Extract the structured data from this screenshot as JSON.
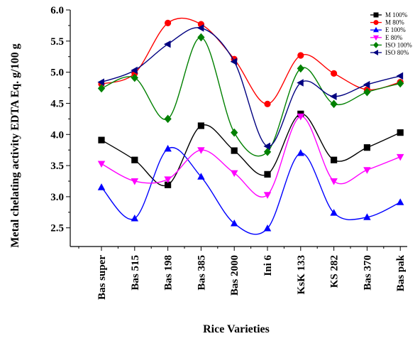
{
  "chart_data": {
    "type": "line",
    "title": "",
    "xlabel": "Rice Varieties",
    "ylabel": "Metal chelating activity EDTA Eq. g/100 g",
    "ylim": [
      2.2,
      6.0
    ],
    "yticks": [
      "2.5",
      "3.0",
      "3.5",
      "4.0",
      "4.5",
      "5.0",
      "5.5",
      "6.0"
    ],
    "categories": [
      "Bas super",
      "Bas 515",
      "Bas 198",
      "Bas 385",
      "Bas 2000",
      "Ini 6",
      "KsK 133",
      "KS 282",
      "Bas 370",
      "Bas pak"
    ],
    "legend_position": "top-right",
    "grid": false,
    "series": [
      {
        "name": "M 100%",
        "color": "#000000",
        "marker": "square",
        "values": [
          3.91,
          3.59,
          3.19,
          4.14,
          3.74,
          3.36,
          4.33,
          3.59,
          3.79,
          4.03
        ]
      },
      {
        "name": "M 80%",
        "color": "#ff0000",
        "marker": "circle",
        "values": [
          4.81,
          4.98,
          5.79,
          5.77,
          5.21,
          4.49,
          5.27,
          4.98,
          4.72,
          4.84
        ]
      },
      {
        "name": "E 100%",
        "color": "#0000ff",
        "marker": "triangle-up",
        "values": [
          3.15,
          2.65,
          3.77,
          3.32,
          2.57,
          2.49,
          3.7,
          2.74,
          2.67,
          2.91
        ]
      },
      {
        "name": "E 80%",
        "color": "#ff00ff",
        "marker": "triangle-down",
        "values": [
          3.53,
          3.25,
          3.28,
          3.75,
          3.38,
          3.03,
          4.29,
          3.25,
          3.43,
          3.64
        ]
      },
      {
        "name": "ISO 100%",
        "color": "#008000",
        "marker": "diamond",
        "values": [
          4.74,
          4.91,
          4.25,
          5.56,
          4.03,
          3.72,
          5.06,
          4.49,
          4.68,
          4.82
        ]
      },
      {
        "name": "ISO 80%",
        "color": "#000080",
        "marker": "triangle-left",
        "values": [
          4.84,
          5.03,
          5.45,
          5.71,
          5.17,
          3.81,
          4.83,
          4.61,
          4.8,
          4.94
        ]
      }
    ]
  }
}
